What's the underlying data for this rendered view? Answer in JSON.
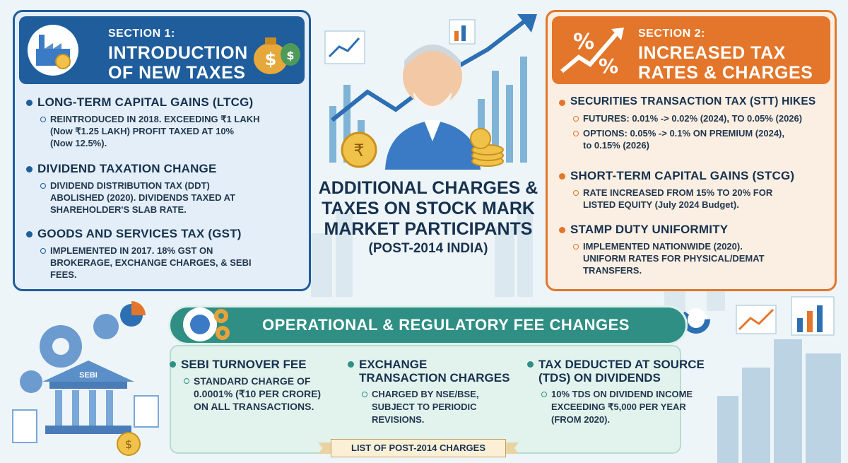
{
  "colors": {
    "section1": "#1f5d9c",
    "section2": "#e3762a",
    "operational": "#2f8f84",
    "background": "#eef5f8"
  },
  "center": {
    "title": "ADDITIONAL CHARGES & TAXES ON STOCK MARK MARKET PARTICIPANTS",
    "subtitle": "(POST-2014 INDIA)"
  },
  "section1": {
    "label": "SECTION 1:",
    "heading_line1": "INTRODUCTION",
    "heading_line2": "OF NEW TAXES",
    "items": [
      {
        "title": "LONG-TERM CAPITAL GAINS (LTCG)",
        "detail_a": "REINTRODUCED IN 2018. EXCEEDING ₹1 LAKH",
        "detail_b": "(Now ₹1.25 LAKH) PROFIT TAXED AT 10%",
        "detail_c": "(Now 12.5%)."
      },
      {
        "title": "DIVIDEND TAXATION CHANGE",
        "detail_a": "DIVIDEND DISTRIBUTION TAX (DDT)",
        "detail_b": "ABOLISHED (2020). DIVIDENDS TAXED AT",
        "detail_c": "SHAREHOLDER'S SLAB RATE."
      },
      {
        "title": "GOODS AND SERVICES TAX (GST)",
        "detail_a": "IMPLEMENTED IN 2017.  18% GST ON",
        "detail_b": "BROKERAGE, EXCHANGE CHARGES, & SEBI",
        "detail_c": "FEES."
      }
    ]
  },
  "section2": {
    "label": "SECTION 2:",
    "heading_line1": "INCREASED TAX",
    "heading_line2": "RATES & CHARGES",
    "items": [
      {
        "title": "SECURITIES TRANSACTION TAX (STT) HIKES",
        "points": [
          "FUTURES: 0.01% -> 0.02% (2024), to 0.05% (2026)",
          "OPTIONS: 0.05% -> 0.1% ON PREMIUM (2024),",
          "to 0.15% (2026)"
        ]
      },
      {
        "title": "SHORT-TERM CAPITAL GAINS (STCG)",
        "points": [
          "RATE INCREASED FROM 15% TO 20% FOR",
          "LISTED EQUITY (July 2024 Budget)."
        ]
      },
      {
        "title": "STAMP DUTY UNIFORMITY",
        "points": [
          "IMPLEMENTED NATIONWIDE (2020).",
          "UNIFORM RATES FOR PHYSICAL/DEMAT",
          "TRANSFERS."
        ]
      }
    ]
  },
  "operational": {
    "heading": "OPERATIONAL & REGULATORY FEE CHANGES",
    "items": [
      {
        "title_a": "SEBI TURNOVER FEE",
        "title_b": "",
        "lines": [
          "STANDARD CHARGE OF",
          "0.0001% (₹10 PER CRORE)",
          "ON ALL TRANSACTIONS."
        ]
      },
      {
        "title_a": "EXCHANGE",
        "title_b": "TRANSACTION CHARGES",
        "lines": [
          "CHARGED BY NSE/BSE,",
          "SUBJECT TO PERIODIC",
          "REVISIONS."
        ]
      },
      {
        "title_a": "TAX DEDUCTED AT SOURCE",
        "title_b": "(TDS) ON DIVIDENDS",
        "lines": [
          "10% TDS ON DIVIDEND INCOME",
          "EXCEEDING ₹5,000 PER YEAR",
          "(FROM 2020)."
        ]
      }
    ],
    "building_sign": "SEBI",
    "footer_tag": "LIST OF POST-2014 CHARGES"
  },
  "icons": [
    "factory-icon",
    "money-bag-icon",
    "percent-icon",
    "trend-arrow-icon",
    "gear-icon",
    "globe-gear-icon",
    "sebi-building-icon",
    "coin-stack-icon",
    "rupee-coin-icon",
    "bar-chart-icon",
    "pie-chart-icon"
  ]
}
